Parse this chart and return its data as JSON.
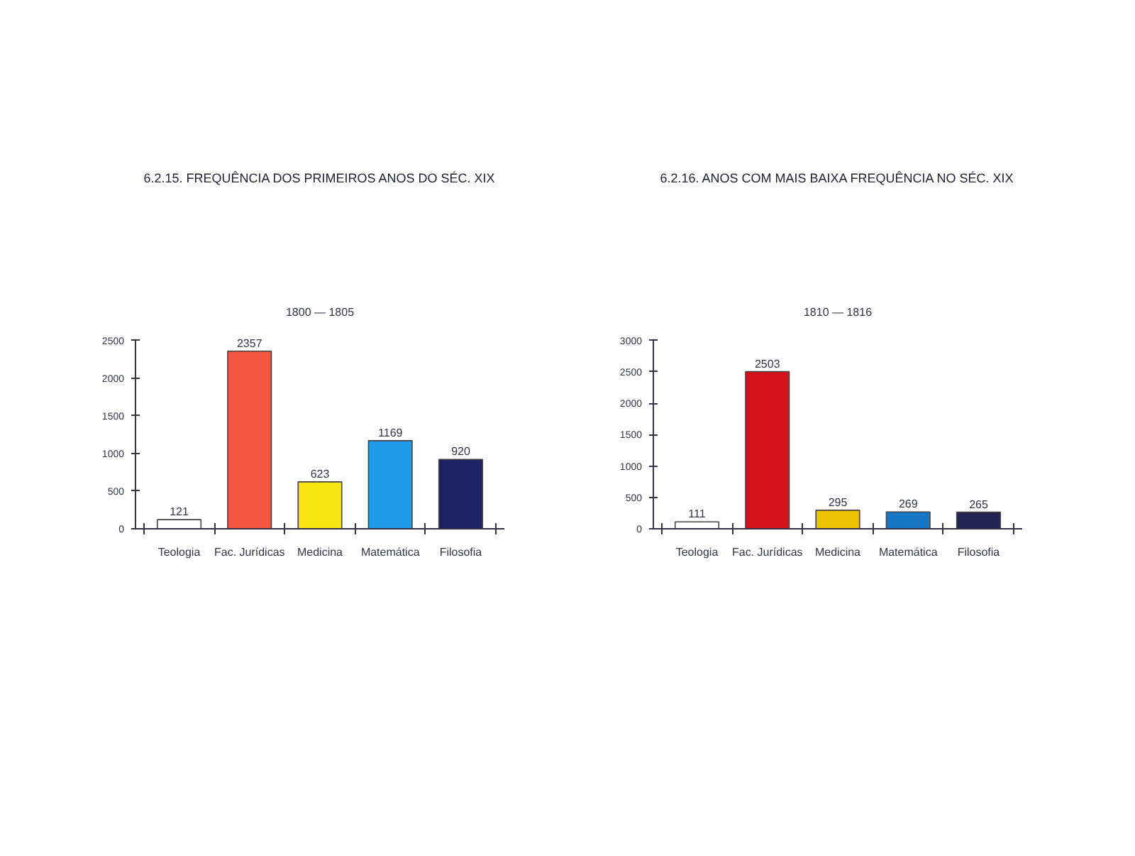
{
  "chart_data": [
    {
      "type": "bar",
      "title": "6.2.15. FREQUÊNCIA DOS PRIMEIROS ANOS DO SÉC. XIX",
      "subtitle": "1800 — 1805",
      "categories": [
        "Teologia",
        "Fac. Jurídicas",
        "Medicina",
        "Matemática",
        "Filosofia"
      ],
      "values": [
        121,
        2357,
        623,
        1169,
        920
      ],
      "colors": [
        "#ffffff",
        "#f4553f",
        "#f8e410",
        "#1c9be8",
        "#1b2365"
      ],
      "ylim": [
        0,
        2500
      ],
      "yticks": [
        0,
        500,
        1000,
        1500,
        2000,
        2500
      ],
      "data_labels": true
    },
    {
      "type": "bar",
      "title": "6.2.16. ANOS COM MAIS BAIXA FREQUÊNCIA NO SÉC. XIX",
      "subtitle": "1810 — 1816",
      "categories": [
        "Teologia",
        "Fac. Jurídicas",
        "Medicina",
        "Matemática",
        "Filosofia"
      ],
      "values": [
        111,
        2503,
        295,
        269,
        265
      ],
      "colors": [
        "#ffffff",
        "#d3121b",
        "#ecc300",
        "#1677c6",
        "#222454"
      ],
      "ylim": [
        0,
        3000
      ],
      "yticks": [
        0,
        500,
        1000,
        1500,
        2000,
        2500,
        3000
      ],
      "data_labels": true
    }
  ]
}
